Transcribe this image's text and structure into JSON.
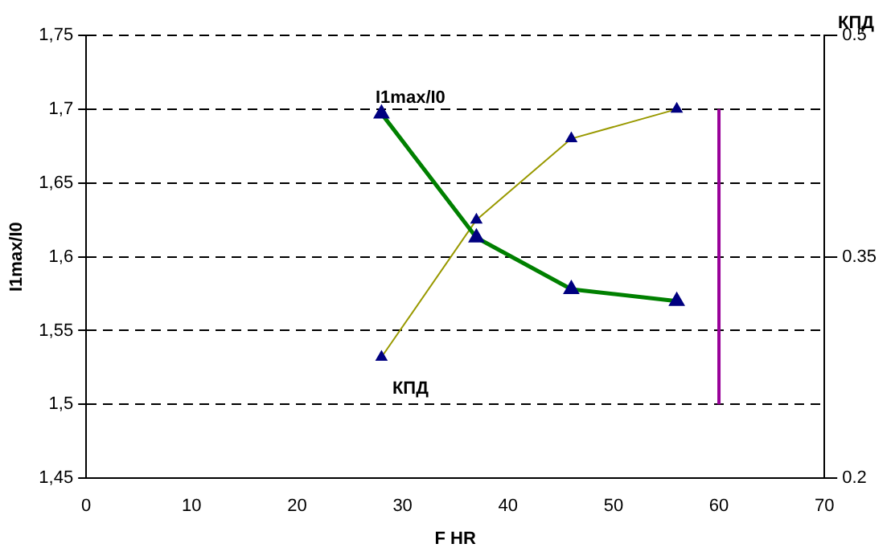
{
  "chart_data": {
    "type": "line",
    "xlabel": "F HR",
    "ylabel": "I1max/I0",
    "y2label": "КПД",
    "xlim": [
      0,
      70
    ],
    "xticks": [
      0,
      10,
      20,
      30,
      40,
      50,
      60,
      70
    ],
    "ylim": [
      1.45,
      1.75
    ],
    "yticks": [
      {
        "value": 1.45,
        "label": "1,45"
      },
      {
        "value": 1.5,
        "label": "1,5"
      },
      {
        "value": 1.55,
        "label": "1,55"
      },
      {
        "value": 1.6,
        "label": "1,6"
      },
      {
        "value": 1.65,
        "label": "1,65"
      },
      {
        "value": 1.7,
        "label": "1,7"
      },
      {
        "value": 1.75,
        "label": "1,75"
      }
    ],
    "y2lim": [
      0.2,
      0.5
    ],
    "y2ticks": [
      0.2,
      0.35,
      0.5
    ],
    "grid": "y",
    "marker": "triangle",
    "legend": false,
    "series": [
      {
        "name": "I1max/I0",
        "color": "#008000",
        "x": [
          28,
          37,
          46,
          56
        ],
        "values": [
          1.697,
          1.613,
          1.578,
          1.57
        ]
      },
      {
        "name": "КПД",
        "color": "#999900",
        "axis": "y2",
        "x": [
          28,
          37,
          46,
          56
        ],
        "values": [
          0.282,
          0.375,
          0.43,
          0.45
        ]
      },
      {
        "color": "#990099",
        "x": [
          60,
          60
        ],
        "values": [
          1.5,
          1.7
        ],
        "marker": "none"
      }
    ]
  }
}
